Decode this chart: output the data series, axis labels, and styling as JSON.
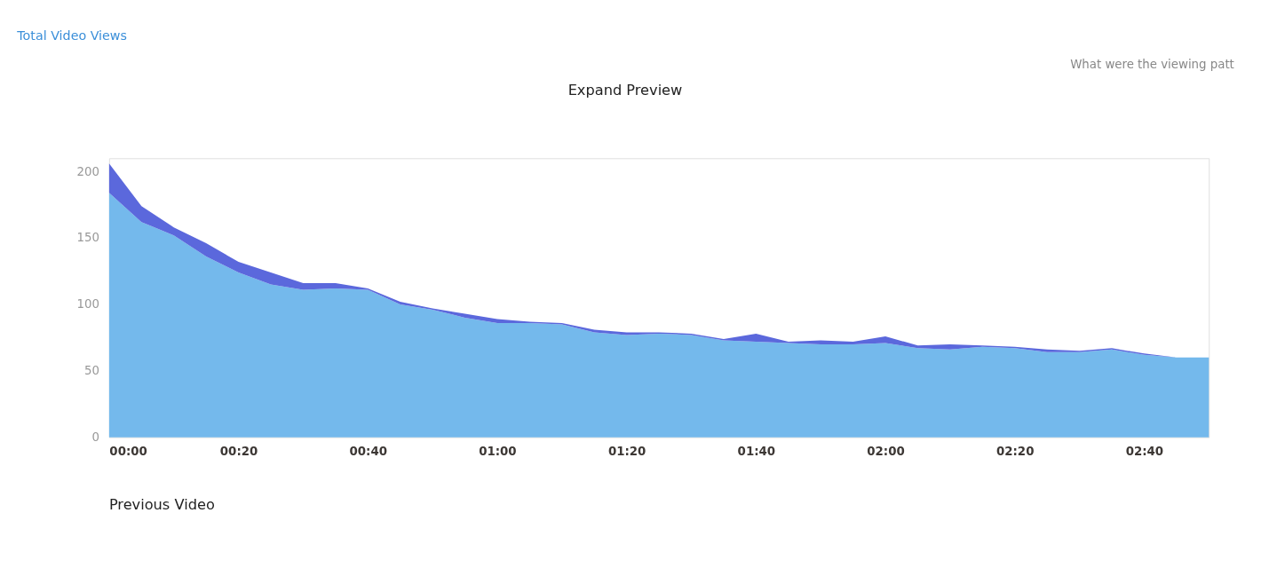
{
  "chart_data": {
    "type": "area",
    "stacked": true,
    "title": "Total Video Views",
    "annotations": [
      "What were the viewing patt",
      "Expand Preview",
      "Previous Video"
    ],
    "x": [
      0,
      5,
      10,
      15,
      20,
      25,
      30,
      35,
      40,
      45,
      50,
      55,
      60,
      65,
      70,
      75,
      80,
      85,
      90,
      95,
      100,
      105,
      110,
      115,
      120,
      125,
      130,
      135,
      140,
      145,
      150,
      155,
      160,
      165,
      170
    ],
    "series": [
      {
        "color": "#74b9ec",
        "values": [
          184,
          162,
          152,
          136,
          124,
          115,
          111,
          112,
          111,
          100,
          96,
          90,
          86,
          86,
          85,
          79,
          77,
          78,
          77,
          73,
          72,
          71,
          70,
          70,
          71,
          67,
          66,
          68,
          67,
          64,
          64,
          66,
          62,
          60,
          60
        ]
      },
      {
        "color": "#5b68dc",
        "values": [
          22,
          12,
          6,
          10,
          8,
          9,
          5,
          4,
          1,
          2,
          1,
          3,
          3,
          1,
          1,
          2,
          2,
          1,
          1,
          1,
          6,
          1,
          3,
          2,
          5,
          2,
          4,
          1,
          1,
          2,
          1,
          1,
          1,
          0,
          0
        ]
      }
    ],
    "xlim": [
      0,
      170
    ],
    "xticks": [
      {
        "value": 0,
        "label": "00:00"
      },
      {
        "value": 20,
        "label": "00:20"
      },
      {
        "value": 40,
        "label": "00:40"
      },
      {
        "value": 60,
        "label": "01:00"
      },
      {
        "value": 80,
        "label": "01:20"
      },
      {
        "value": 100,
        "label": "01:40"
      },
      {
        "value": 120,
        "label": "02:00"
      },
      {
        "value": 140,
        "label": "02:20"
      },
      {
        "value": 160,
        "label": "02:40"
      }
    ],
    "ylim": [
      0,
      210
    ],
    "yticks": [
      0,
      50,
      100,
      150,
      200
    ],
    "grid": false,
    "legend": false
  }
}
